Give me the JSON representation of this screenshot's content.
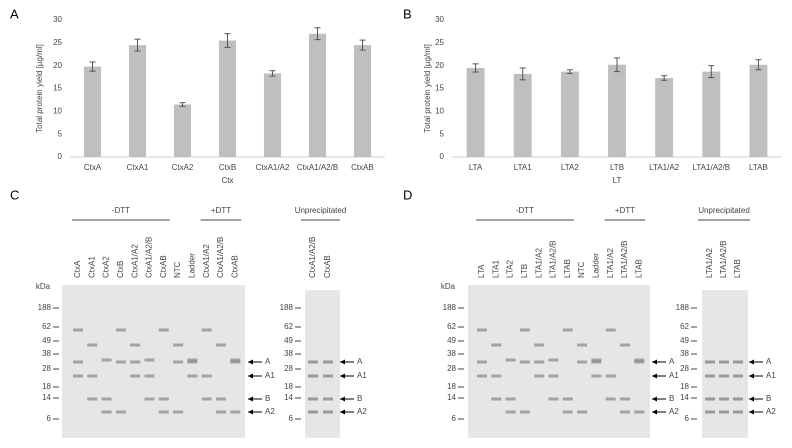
{
  "chart_data": [
    {
      "type": "bar",
      "panel": "A",
      "ylabel": "Total protein yield [µg/ml]",
      "xlabel": "Ctx",
      "categories": [
        "CtxA",
        "CtxA1",
        "CtxA2",
        "CtxB",
        "CtxA1/A2",
        "CtxA1/A2/B",
        "CtxAB"
      ],
      "values": [
        19.8,
        24.5,
        11.5,
        25.5,
        18.3,
        27,
        24.5
      ],
      "errors": [
        1,
        1.3,
        0.4,
        1.5,
        0.6,
        1.3,
        1.1
      ],
      "color": "#bfbfbf",
      "ylim": [
        0,
        30
      ],
      "yticks": [
        0,
        5,
        10,
        15,
        20,
        25,
        30
      ],
      "grid": false
    },
    {
      "type": "bar",
      "panel": "B",
      "ylabel": "Total protein yield [µg/ml]",
      "xlabel": "LT",
      "categories": [
        "LTA",
        "LTA1",
        "LTA2",
        "LTB",
        "LTA1/A2",
        "LTA1/A2/B",
        "LTAB"
      ],
      "values": [
        19.5,
        18.2,
        18.7,
        20.2,
        17.3,
        18.7,
        20.2
      ],
      "errors": [
        0.9,
        1.3,
        0.4,
        1.5,
        0.5,
        1.3,
        1.1
      ],
      "color": "#bfbfbf",
      "ylim": [
        0,
        30
      ],
      "yticks": [
        0,
        5,
        10,
        15,
        20,
        25,
        30
      ],
      "grid": false
    }
  ],
  "gels": [
    {
      "panel": "C",
      "kda_label": "kDa",
      "markers": [
        188,
        62,
        49,
        38,
        28,
        18,
        14,
        6
      ],
      "groups": [
        {
          "label": "-DTT",
          "lanes": [
            "CtxA",
            "CtxA1",
            "CtxA2",
            "CtxB",
            "CtxA1/A2",
            "CtxA1/A2/B",
            "CtxAB"
          ]
        },
        {
          "lanes": [
            "NTC",
            "Ladder"
          ]
        },
        {
          "label": "+DTT",
          "lanes": [
            "CtxA1/A2",
            "CtxA1/A2/B",
            "CtxAB"
          ]
        }
      ],
      "unprecipitated": {
        "label": "Unprecipitated",
        "lanes": [
          "CtxA1/A2/B",
          "CtxAB"
        ]
      },
      "bands": [
        "A",
        "A1",
        "B",
        "A2"
      ]
    },
    {
      "panel": "D",
      "kda_label": "kDa",
      "markers": [
        188,
        62,
        49,
        38,
        28,
        18,
        14,
        6
      ],
      "groups": [
        {
          "label": "-DTT",
          "lanes": [
            "LTA",
            "LTA1",
            "LTA2",
            "LTB",
            "LTA1/A2",
            "LTA1/A2/B",
            "LTAB"
          ]
        },
        {
          "lanes": [
            "NTC",
            "Ladder"
          ]
        },
        {
          "label": "+DTT",
          "lanes": [
            "LTA1/A2",
            "LTA1/A2/B",
            "LTAB"
          ]
        }
      ],
      "unprecipitated": {
        "label": "Unprecipitated",
        "lanes": [
          "LTA1/A2",
          "LTA1/A2/B",
          "LTAB"
        ]
      },
      "bands": [
        "A",
        "A1",
        "B",
        "A2"
      ]
    }
  ]
}
